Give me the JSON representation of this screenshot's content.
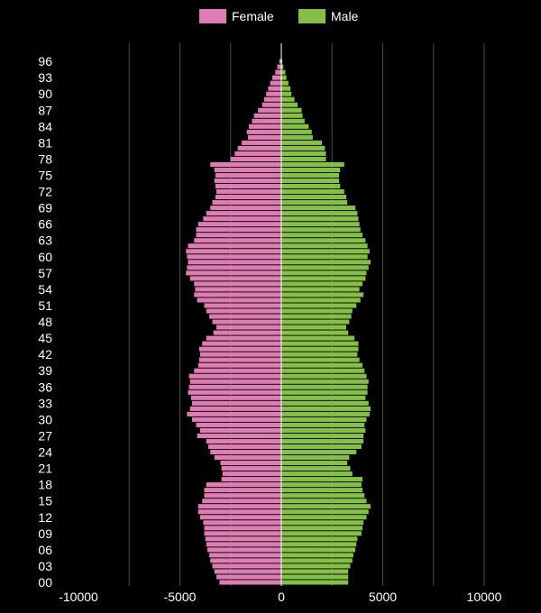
{
  "chart_data": {
    "type": "bar",
    "orientation": "horizontal",
    "chart_style": "population-pyramid",
    "title": "",
    "xlabel": "",
    "ylabel": "",
    "xlim": [
      -12000,
      12000
    ],
    "x_ticks": [
      -10000,
      -5000,
      0,
      5000,
      10000
    ],
    "x_tick_labels": [
      "-10000",
      "-5000",
      "0",
      "5000",
      "10000"
    ],
    "grid": true,
    "legend_position": "top-center",
    "background_color": "#000000",
    "categories": [
      0,
      1,
      2,
      3,
      4,
      5,
      6,
      7,
      8,
      9,
      10,
      11,
      12,
      13,
      14,
      15,
      16,
      17,
      18,
      19,
      20,
      21,
      22,
      23,
      24,
      25,
      26,
      27,
      28,
      29,
      30,
      31,
      32,
      33,
      34,
      35,
      36,
      37,
      38,
      39,
      40,
      41,
      42,
      43,
      44,
      45,
      46,
      47,
      48,
      49,
      50,
      51,
      52,
      53,
      54,
      55,
      56,
      57,
      58,
      59,
      60,
      61,
      62,
      63,
      64,
      65,
      66,
      67,
      68,
      69,
      70,
      71,
      72,
      73,
      74,
      75,
      76,
      77,
      78,
      79,
      80,
      81,
      82,
      83,
      84,
      85,
      86,
      87,
      88,
      89,
      90,
      91,
      92,
      93,
      94,
      95,
      96
    ],
    "y_tick_labels": [
      "00",
      "03",
      "06",
      "09",
      "12",
      "15",
      "18",
      "21",
      "24",
      "27",
      "30",
      "33",
      "36",
      "39",
      "42",
      "45",
      "48",
      "51",
      "54",
      "57",
      "60",
      "63",
      "66",
      "69",
      "72",
      "75",
      "78",
      "81",
      "84",
      "87",
      "90",
      "93",
      "96"
    ],
    "series": [
      {
        "name": "Female",
        "color": "#de7db3",
        "values": [
          -3050,
          -3200,
          -3300,
          -3400,
          -3500,
          -3550,
          -3650,
          -3700,
          -3750,
          -3800,
          -3800,
          -3850,
          -4000,
          -4100,
          -4100,
          -3900,
          -3800,
          -3800,
          -3700,
          -2950,
          -2900,
          -2950,
          -3000,
          -3300,
          -3500,
          -3600,
          -3700,
          -4150,
          -4000,
          -4200,
          -4400,
          -4650,
          -4500,
          -4400,
          -4450,
          -4600,
          -4550,
          -4500,
          -4550,
          -4300,
          -4100,
          -4050,
          -4000,
          -4050,
          -3900,
          -3700,
          -3350,
          -3200,
          -3400,
          -3550,
          -3700,
          -3800,
          -4150,
          -4300,
          -4250,
          -4300,
          -4500,
          -4700,
          -4650,
          -4600,
          -4650,
          -4700,
          -4600,
          -4300,
          -4200,
          -4200,
          -4100,
          -3850,
          -3700,
          -3500,
          -3400,
          -3250,
          -3200,
          -3250,
          -3300,
          -3250,
          -3300,
          -3500,
          -2500,
          -2300,
          -2150,
          -1950,
          -1650,
          -1700,
          -1600,
          -1450,
          -1350,
          -1150,
          -950,
          -850,
          -750,
          -650,
          -550,
          -450,
          -300,
          -200,
          -100
        ]
      },
      {
        "name": "Male",
        "color": "#86bf48",
        "values": [
          3300,
          3300,
          3300,
          3400,
          3500,
          3550,
          3650,
          3700,
          3750,
          3950,
          4000,
          4050,
          4200,
          4300,
          4400,
          4200,
          4100,
          4000,
          3950,
          4000,
          3500,
          3400,
          3250,
          3350,
          3700,
          3950,
          4050,
          4050,
          4150,
          4100,
          4200,
          4350,
          4400,
          4300,
          4150,
          4250,
          4250,
          4300,
          4200,
          4100,
          4000,
          3850,
          3750,
          3800,
          3800,
          3600,
          3300,
          3200,
          3350,
          3450,
          3500,
          3700,
          3900,
          4050,
          3850,
          4000,
          4150,
          4200,
          4300,
          4400,
          4250,
          4350,
          4250,
          4150,
          4000,
          3900,
          3850,
          3800,
          3750,
          3650,
          3250,
          3200,
          3100,
          2900,
          2850,
          2850,
          2900,
          3100,
          2200,
          2200,
          2150,
          2000,
          1550,
          1500,
          1350,
          1150,
          1050,
          1000,
          800,
          650,
          500,
          450,
          350,
          250,
          200,
          100,
          50
        ]
      }
    ]
  }
}
